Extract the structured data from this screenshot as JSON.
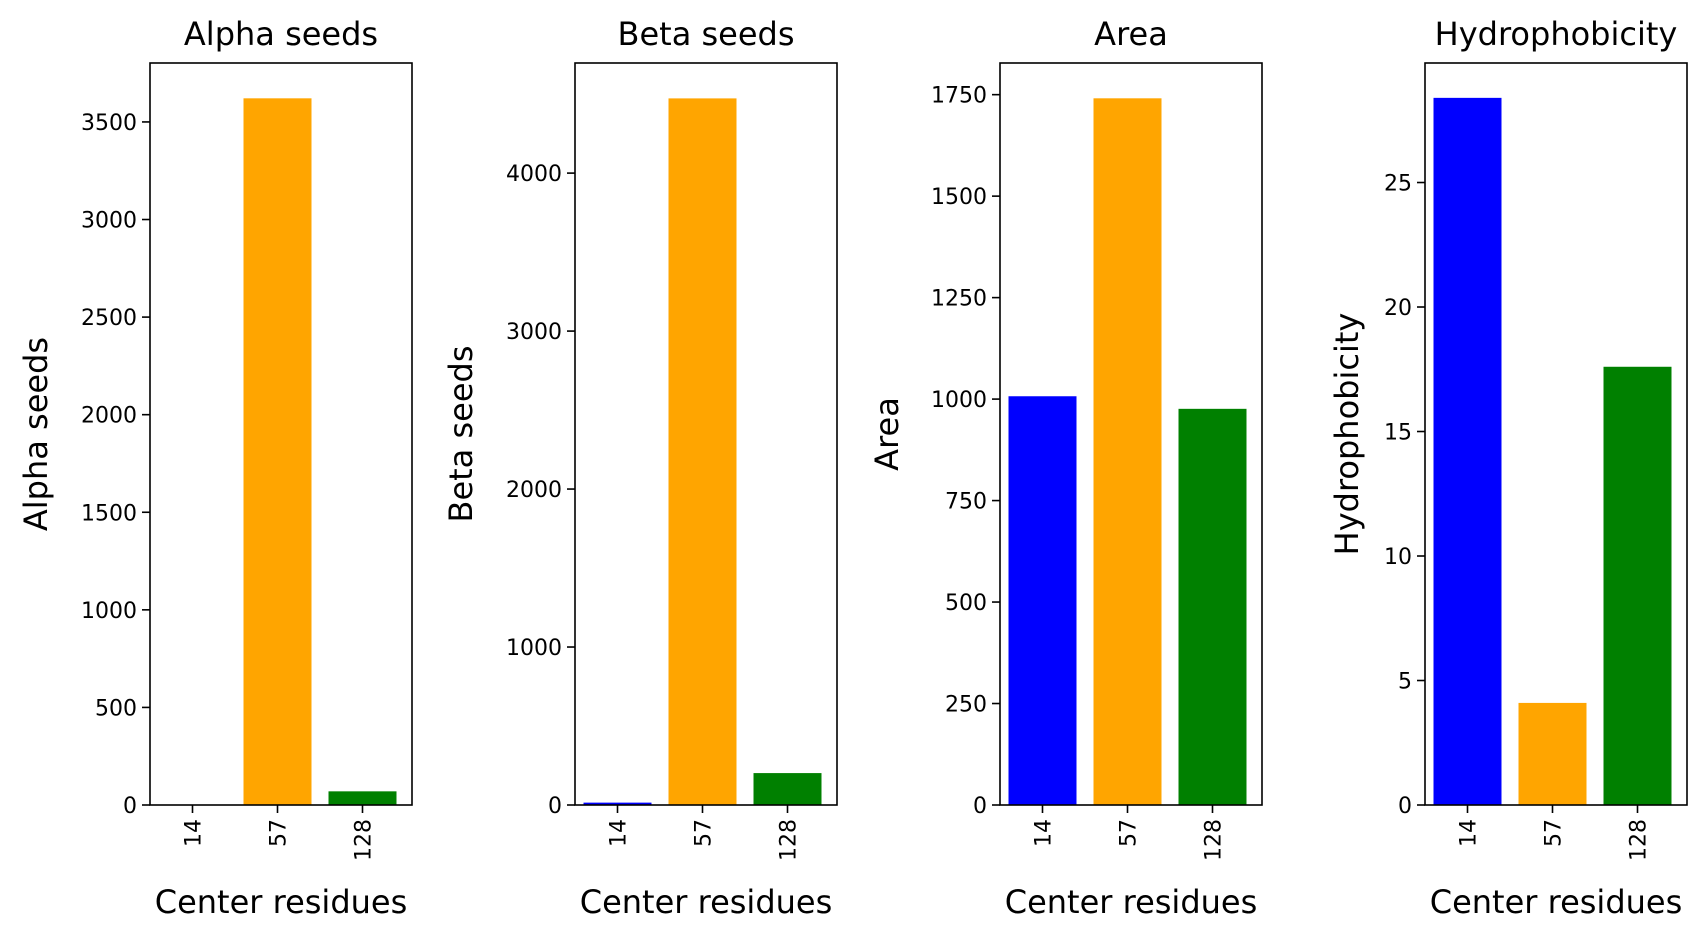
{
  "chart_data": [
    {
      "type": "bar",
      "title": "Alpha seeds",
      "xlabel": "Center residues",
      "ylabel": "Alpha seeds",
      "categories": [
        "14",
        "57",
        "128"
      ],
      "values": [
        2,
        3621,
        70
      ],
      "colors": [
        "#0000ff",
        "#ffa500",
        "#008000"
      ],
      "ylim": [
        0,
        3802
      ],
      "yticks": [
        0,
        500,
        1000,
        1500,
        2000,
        2500,
        3000,
        3500
      ],
      "grid": false
    },
    {
      "type": "bar",
      "title": "Beta seeds",
      "xlabel": "Center residues",
      "ylabel": "Beta seeds",
      "categories": [
        "14",
        "57",
        "128"
      ],
      "values": [
        15,
        4473,
        202
      ],
      "colors": [
        "#0000ff",
        "#ffa500",
        "#008000"
      ],
      "ylim": [
        0,
        4697
      ],
      "yticks": [
        0,
        1000,
        2000,
        3000,
        4000
      ],
      "grid": false
    },
    {
      "type": "bar",
      "title": "Area",
      "xlabel": "Center residues",
      "ylabel": "Area",
      "categories": [
        "14",
        "57",
        "128"
      ],
      "values": [
        1007,
        1741,
        976
      ],
      "colors": [
        "#0000ff",
        "#ffa500",
        "#008000"
      ],
      "ylim": [
        0,
        1828
      ],
      "yticks": [
        0,
        250,
        500,
        750,
        1000,
        1250,
        1500,
        1750
      ],
      "grid": false
    },
    {
      "type": "bar",
      "title": "Hydrophobicity",
      "xlabel": "Center residues",
      "ylabel": "Hydrophobicity",
      "categories": [
        "14",
        "57",
        "128"
      ],
      "values": [
        28.4,
        4.1,
        17.6
      ],
      "colors": [
        "#0000ff",
        "#ffa500",
        "#008000"
      ],
      "ylim": [
        0,
        29.8
      ],
      "yticks": [
        0,
        5,
        10,
        15,
        20,
        25
      ],
      "grid": false
    }
  ]
}
